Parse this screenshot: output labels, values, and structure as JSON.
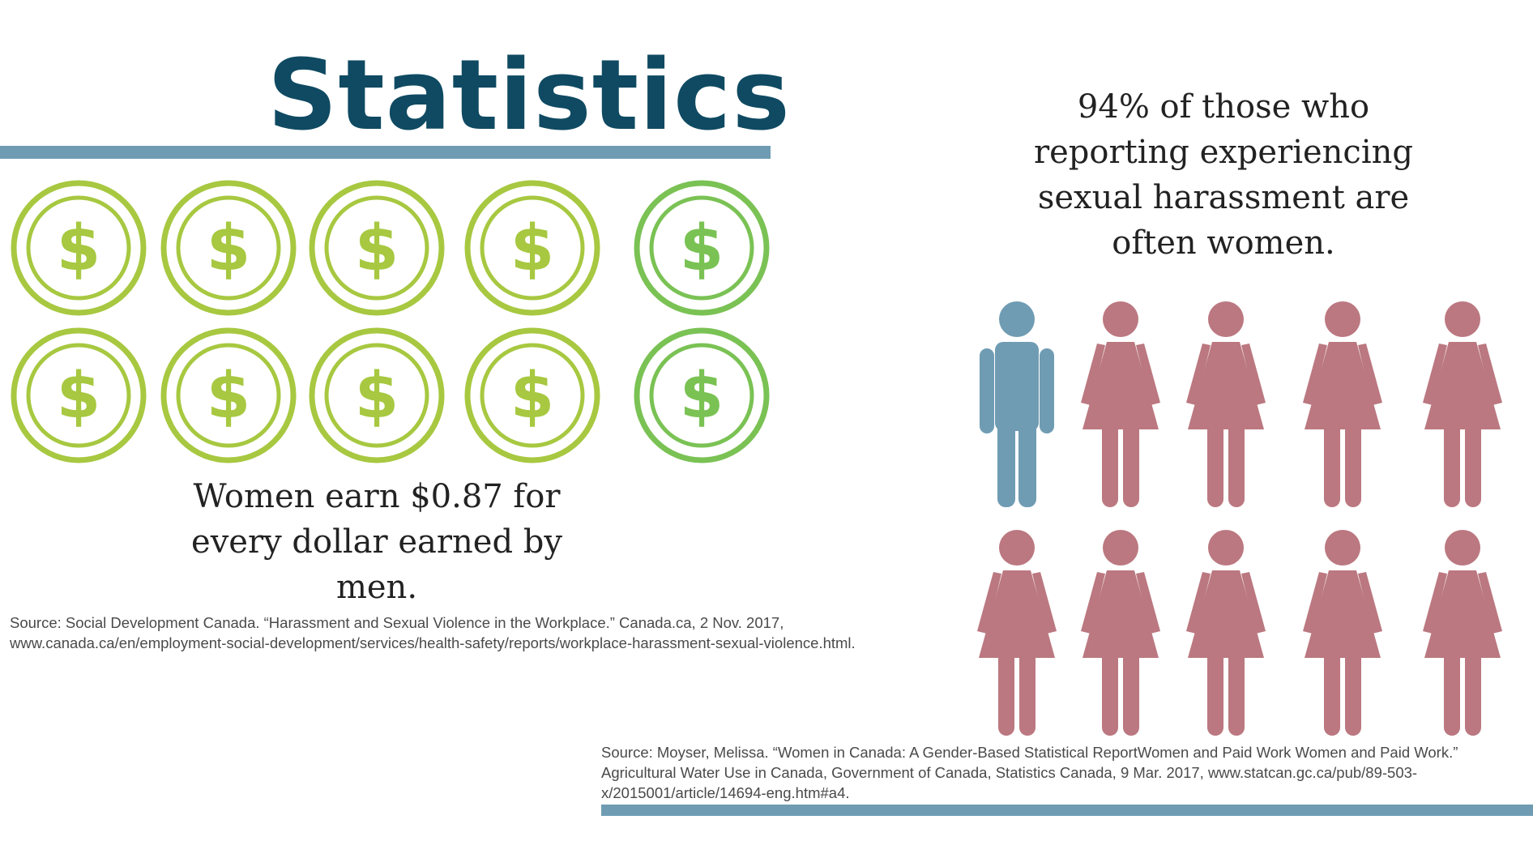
{
  "title": "Statistics",
  "wage": {
    "text": "Women earn $0.87 for every dollar earned by men.",
    "coin_symbol": "$",
    "coin_color": "#a7c840",
    "coin_accent_color": "#7ac254"
  },
  "harassment": {
    "text": "94% of those who reporting experiencing sexual harassment are often women.",
    "male_color": "#6f9cb3",
    "female_color": "#bb7880",
    "figures": [
      "male",
      "female",
      "female",
      "female",
      "female",
      "female",
      "female",
      "female",
      "female",
      "female"
    ]
  },
  "sources": {
    "left": "Source: Social Development Canada. “Harassment and Sexual Violence in the Workplace.” Canada.ca, 2 Nov. 2017, www.canada.ca/en/employment-social-development/services/health-safety/reports/workplace-harassment-sexual-violence.html.",
    "right": "Source: Moyser, Melissa. “Women in Canada: A Gender-Based Statistical ReportWomen and Paid Work Women and Paid Work.” Agricultural Water Use in Canada, Government of Canada, Statistics Canada, 9 Mar. 2017, www.statcan.gc.ca/pub/89-503-x/2015001/article/14694-eng.htm#a4."
  },
  "colors": {
    "title": "#0f4a62",
    "bar": "#6f9cb3"
  }
}
